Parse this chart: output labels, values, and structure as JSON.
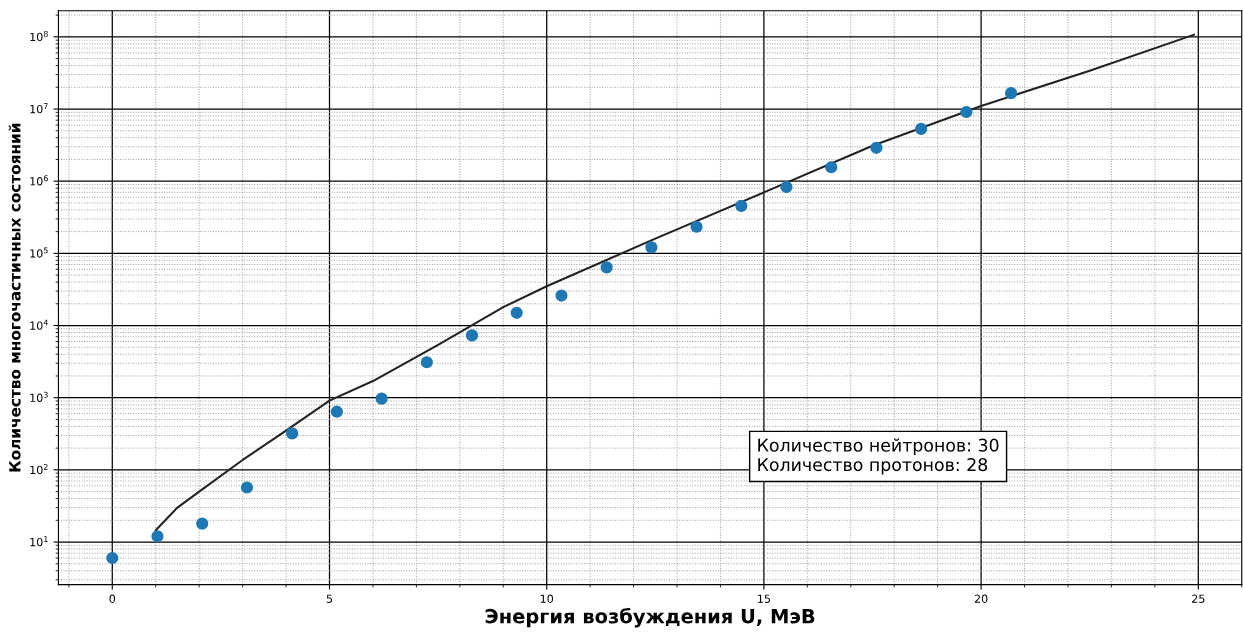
{
  "chart_data": {
    "type": "scatter",
    "xlabel": "Энергия возбуждения U, МэВ",
    "ylabel": "Количество многочастичных состояний",
    "log": "y",
    "grid": true,
    "marker": "circle",
    "xlim": [
      -1.24,
      26.0
    ],
    "ylim": [
      2.57,
      230000000.0
    ],
    "xticks": [
      0,
      5,
      10,
      15,
      20,
      25
    ],
    "yticks": [
      {
        "value": 10,
        "label": "10$^{1}$"
      },
      {
        "value": 100,
        "label": "10$^{2}$"
      },
      {
        "value": 1000,
        "label": "10$^{3}$"
      },
      {
        "value": 10000,
        "label": "10$^{4}$"
      },
      {
        "value": 100000,
        "label": "10$^{5}$"
      },
      {
        "value": 1000000,
        "label": "10$^{6}$"
      },
      {
        "value": 10000000,
        "label": "10$^{7}$"
      },
      {
        "value": 100000000,
        "label": "10$^{8}$"
      }
    ],
    "series": [
      {
        "color": "#1f77b4",
        "x": [
          0,
          1.04,
          2.07,
          3.1,
          4.14,
          5.17,
          6.2,
          7.24,
          8.28,
          9.31,
          10.34,
          11.38,
          12.41,
          13.45,
          14.48,
          15.52,
          16.55,
          17.59,
          18.62,
          19.66,
          20.69
        ],
        "values": [
          6.0,
          12,
          18,
          57,
          320,
          640,
          970,
          3100,
          7300,
          15000,
          26000,
          64000,
          121000,
          234000,
          455000,
          830000,
          1560000,
          2900000,
          5300000,
          9100000,
          16600000
        ]
      },
      {
        "type": "line",
        "color": "#222222",
        "marker": "none",
        "x": [
          1.0,
          1.5,
          2,
          3,
          4,
          5,
          6,
          7.5,
          9,
          10,
          12.5,
          15,
          17.5,
          20,
          22.5,
          24.9
        ],
        "values": [
          14.6,
          30,
          50,
          137,
          350,
          910,
          1700,
          5400,
          18000,
          35000,
          160000,
          700000,
          3100000,
          11000000,
          34000000,
          107000000
        ]
      }
    ],
    "annotations": [
      "Количество нейтронов: 30\nКоличество протонов: 28"
    ]
  }
}
